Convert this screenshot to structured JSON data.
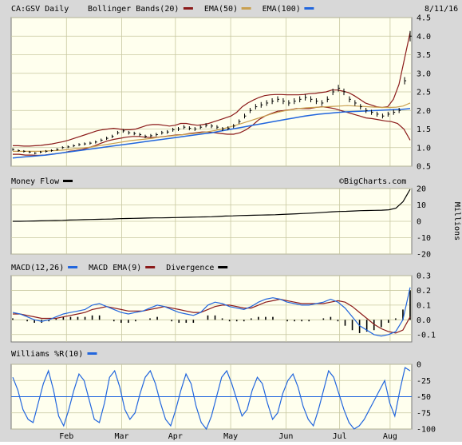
{
  "chart_data": {
    "type": "line",
    "ticker_label": "CA:GSV Daily",
    "date": "8/11/16",
    "watermark": "©BigCharts.com",
    "x_labels": [
      "Feb",
      "Mar",
      "Apr",
      "May",
      "Jun",
      "Jul",
      "Aug"
    ],
    "colors": {
      "price": "#000000",
      "bollinger": "#8b1a1a",
      "ema50": "#c9a050",
      "ema100": "#2266dd",
      "panel_bg": "#ffffee",
      "grid": "#c8c8a0",
      "frame": "#d8d8d8"
    },
    "panels": {
      "price": {
        "legend": [
          {
            "label": "CA:GSV Daily",
            "color": "#000000"
          },
          {
            "label": "Bollinger Bands(20)",
            "color": "#8b1a1a"
          },
          {
            "label": "EMA(50)",
            "color": "#c9a050"
          },
          {
            "label": "EMA(100)",
            "color": "#2266dd"
          }
        ],
        "ylim": [
          0.5,
          4.5
        ],
        "yticks": [
          "4.5",
          "4.0",
          "3.5",
          "3.0",
          "2.5",
          "2.0",
          "1.5",
          "1.0",
          "0.5"
        ],
        "close": [
          0.95,
          0.92,
          0.9,
          0.88,
          0.85,
          0.88,
          0.9,
          0.92,
          0.95,
          1.0,
          1.02,
          1.05,
          1.08,
          1.1,
          1.12,
          1.15,
          1.2,
          1.25,
          1.3,
          1.4,
          1.45,
          1.4,
          1.38,
          1.35,
          1.3,
          1.32,
          1.35,
          1.4,
          1.42,
          1.48,
          1.5,
          1.55,
          1.52,
          1.5,
          1.55,
          1.6,
          1.58,
          1.55,
          1.5,
          1.52,
          1.58,
          1.7,
          1.85,
          2.0,
          2.1,
          2.15,
          2.2,
          2.25,
          2.3,
          2.25,
          2.2,
          2.25,
          2.3,
          2.35,
          2.3,
          2.25,
          2.2,
          2.3,
          2.5,
          2.6,
          2.5,
          2.3,
          2.2,
          2.1,
          2.0,
          1.95,
          1.9,
          1.85,
          1.9,
          1.95,
          2.0,
          2.8,
          4.0
        ],
        "bb_upper": [
          1.05,
          1.05,
          1.04,
          1.04,
          1.05,
          1.06,
          1.08,
          1.1,
          1.13,
          1.16,
          1.2,
          1.25,
          1.3,
          1.35,
          1.4,
          1.45,
          1.48,
          1.5,
          1.52,
          1.5,
          1.48,
          1.48,
          1.5,
          1.55,
          1.6,
          1.62,
          1.62,
          1.6,
          1.58,
          1.6,
          1.65,
          1.65,
          1.62,
          1.6,
          1.62,
          1.65,
          1.7,
          1.75,
          1.8,
          1.85,
          1.95,
          2.1,
          2.2,
          2.28,
          2.35,
          2.4,
          2.42,
          2.43,
          2.43,
          2.42,
          2.42,
          2.42,
          2.43,
          2.45,
          2.46,
          2.48,
          2.5,
          2.55,
          2.55,
          2.52,
          2.48,
          2.4,
          2.3,
          2.2,
          2.15,
          2.1,
          2.08,
          2.1,
          2.3,
          2.7,
          3.4,
          4.1
        ],
        "bb_lower": [
          0.82,
          0.82,
          0.8,
          0.8,
          0.79,
          0.8,
          0.82,
          0.84,
          0.86,
          0.9,
          0.92,
          0.95,
          1.0,
          1.05,
          1.12,
          1.18,
          1.22,
          1.25,
          1.28,
          1.3,
          1.3,
          1.28,
          1.27,
          1.28,
          1.3,
          1.32,
          1.34,
          1.35,
          1.38,
          1.4,
          1.42,
          1.42,
          1.4,
          1.38,
          1.36,
          1.36,
          1.4,
          1.48,
          1.6,
          1.75,
          1.85,
          1.92,
          1.98,
          2.0,
          2.02,
          2.05,
          2.05,
          2.05,
          2.08,
          2.1,
          2.08,
          2.05,
          2.0,
          1.95,
          1.9,
          1.85,
          1.8,
          1.78,
          1.75,
          1.72,
          1.7,
          1.65,
          1.5,
          1.2
        ],
        "ema50": [
          0.9,
          0.9,
          0.9,
          0.9,
          0.9,
          0.91,
          0.92,
          0.93,
          0.95,
          0.97,
          0.99,
          1.01,
          1.04,
          1.07,
          1.1,
          1.13,
          1.16,
          1.19,
          1.21,
          1.23,
          1.25,
          1.28,
          1.3,
          1.32,
          1.34,
          1.36,
          1.38,
          1.4,
          1.43,
          1.46,
          1.5,
          1.55,
          1.6,
          1.66,
          1.72,
          1.78,
          1.84,
          1.9,
          1.95,
          1.99,
          2.02,
          2.05,
          2.07,
          2.08,
          2.09,
          2.1,
          2.11,
          2.12,
          2.13,
          2.12,
          2.11,
          2.1,
          2.09,
          2.08,
          2.08,
          2.09,
          2.12,
          2.2
        ],
        "ema100": [
          0.72,
          0.74,
          0.76,
          0.78,
          0.8,
          0.83,
          0.86,
          0.89,
          0.92,
          0.95,
          0.98,
          1.01,
          1.04,
          1.07,
          1.1,
          1.13,
          1.16,
          1.19,
          1.22,
          1.25,
          1.28,
          1.31,
          1.34,
          1.37,
          1.4,
          1.44,
          1.48,
          1.52,
          1.56,
          1.6,
          1.64,
          1.68,
          1.72,
          1.76,
          1.8,
          1.84,
          1.87,
          1.9,
          1.92,
          1.94,
          1.96,
          1.97,
          1.98,
          1.99,
          2.0,
          2.01,
          2.02,
          2.03,
          2.05
        ]
      },
      "money_flow": {
        "legend": [
          {
            "label": "Money Flow",
            "color": "#000000"
          }
        ],
        "ylim": [
          -20,
          20
        ],
        "yticks": [
          "20",
          "10",
          "0",
          "-10",
          "-20"
        ],
        "ylabel": "Millions",
        "values": [
          0,
          0,
          0.1,
          0.2,
          0.3,
          0.4,
          0.5,
          0.6,
          0.8,
          0.9,
          1.0,
          1.1,
          1.2,
          1.3,
          1.4,
          1.6,
          1.7,
          1.8,
          1.9,
          2.0,
          2.1,
          2.1,
          2.2,
          2.3,
          2.4,
          2.5,
          2.6,
          2.7,
          2.8,
          3.0,
          3.2,
          3.3,
          3.5,
          3.6,
          3.7,
          3.8,
          3.9,
          4.0,
          4.2,
          4.4,
          4.6,
          4.8,
          5.0,
          5.2,
          5.5,
          5.8,
          6.0,
          6.1,
          6.3,
          6.5,
          6.6,
          6.7,
          6.8,
          7.0,
          8.0,
          12.0,
          19.5
        ]
      },
      "macd": {
        "legend": [
          {
            "label": "MACD(12,26)",
            "color": "#2266dd"
          },
          {
            "label": "MACD EMA(9)",
            "color": "#8b1a1a"
          },
          {
            "label": "Divergence",
            "color": "#000000"
          }
        ],
        "ylim": [
          -0.15,
          0.3
        ],
        "yticks": [
          "0.3",
          "0.2",
          "0.1",
          "0.0",
          "-0.1"
        ],
        "macd": [
          0.05,
          0.04,
          0.02,
          0.0,
          -0.01,
          0.0,
          0.02,
          0.04,
          0.05,
          0.06,
          0.07,
          0.1,
          0.11,
          0.09,
          0.07,
          0.05,
          0.04,
          0.05,
          0.06,
          0.08,
          0.1,
          0.09,
          0.07,
          0.05,
          0.04,
          0.03,
          0.05,
          0.1,
          0.12,
          0.11,
          0.09,
          0.08,
          0.07,
          0.09,
          0.12,
          0.14,
          0.15,
          0.14,
          0.12,
          0.11,
          0.1,
          0.1,
          0.11,
          0.12,
          0.14,
          0.12,
          0.08,
          0.02,
          -0.04,
          -0.07,
          -0.1,
          -0.11,
          -0.1,
          -0.08,
          0.0,
          0.22
        ],
        "signal": [
          0.04,
          0.04,
          0.03,
          0.02,
          0.01,
          0.01,
          0.01,
          0.02,
          0.03,
          0.04,
          0.05,
          0.07,
          0.08,
          0.09,
          0.08,
          0.07,
          0.06,
          0.06,
          0.06,
          0.07,
          0.08,
          0.09,
          0.08,
          0.07,
          0.06,
          0.05,
          0.05,
          0.07,
          0.09,
          0.1,
          0.1,
          0.09,
          0.08,
          0.08,
          0.1,
          0.12,
          0.13,
          0.14,
          0.13,
          0.12,
          0.11,
          0.11,
          0.11,
          0.11,
          0.12,
          0.13,
          0.12,
          0.09,
          0.05,
          0.01,
          -0.03,
          -0.06,
          -0.08,
          -0.09,
          -0.07,
          0.02
        ]
      },
      "williams": {
        "legend": [
          {
            "label": "Williams %R(10)",
            "color": "#2266dd"
          }
        ],
        "ylim": [
          -100,
          0
        ],
        "yticks": [
          "0",
          "-25",
          "-50",
          "-75",
          "-100"
        ],
        "values": [
          -20,
          -40,
          -70,
          -85,
          -90,
          -60,
          -30,
          -10,
          -40,
          -80,
          -95,
          -70,
          -40,
          -15,
          -25,
          -55,
          -85,
          -90,
          -60,
          -20,
          -10,
          -35,
          -70,
          -85,
          -75,
          -45,
          -20,
          -10,
          -30,
          -60,
          -85,
          -95,
          -70,
          -40,
          -15,
          -30,
          -65,
          -90,
          -100,
          -80,
          -50,
          -20,
          -10,
          -30,
          -55,
          -80,
          -70,
          -40,
          -20,
          -30,
          -60,
          -85,
          -75,
          -45,
          -25,
          -15,
          -35,
          -65,
          -85,
          -95,
          -70,
          -40,
          -10,
          -20,
          -45,
          -70,
          -90,
          -100,
          -95,
          -85,
          -70,
          -55,
          -40,
          -25,
          -60,
          -80,
          -40,
          -5,
          -10
        ]
      }
    }
  }
}
